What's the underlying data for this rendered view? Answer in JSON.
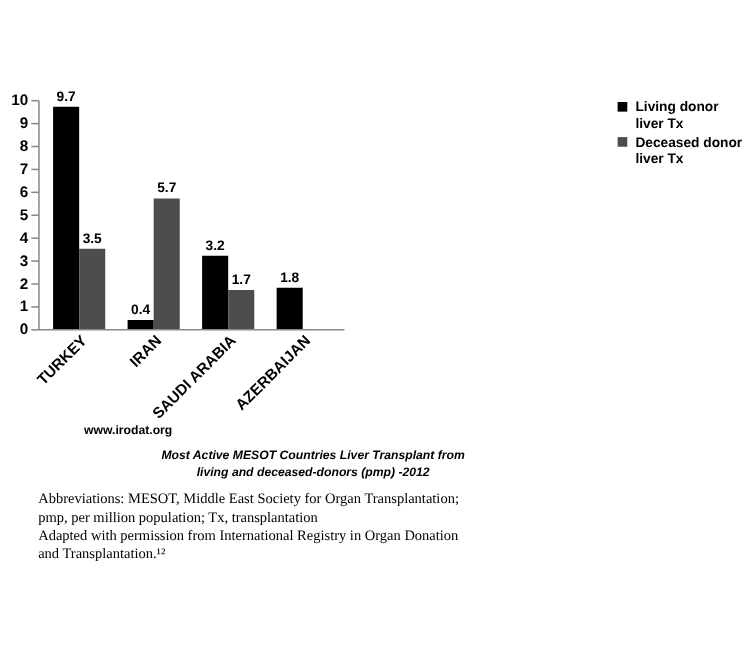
{
  "chart_data": {
    "type": "bar",
    "title": "Most Active MESOT Countries Liver Transplant from living and deceased-donors (pmp) -2012",
    "categories": [
      "TURKEY",
      "IRAN",
      "SAUDI ARABIA",
      "AZERBAIJAN"
    ],
    "series": [
      {
        "name": "Living donor liver Tx",
        "color": "#000000",
        "values": [
          9.7,
          0.4,
          3.2,
          1.8
        ],
        "value_labels": [
          "9.7",
          "0.4",
          "3.2",
          "1.8"
        ]
      },
      {
        "name": "Deceased donor liver Tx",
        "color": "#4d4d4d",
        "values": [
          3.5,
          5.7,
          1.7,
          0
        ],
        "value_labels": [
          "3.5",
          "5.7",
          "1.7",
          null
        ]
      }
    ],
    "ylim": [
      0,
      10
    ],
    "yticks": [
      0,
      1,
      2,
      3,
      4,
      5,
      6,
      7,
      8,
      9,
      10
    ],
    "grid": false,
    "legend": "right",
    "annotations": [
      "www.irodat.org",
      "Abbreviations: MESOT, Middle East Society for Organ Transplantation; pmp, per million population; Tx, transplantation",
      "Adapted with permission from International Registry in Organ Donation and Transplantation.¹²"
    ]
  }
}
